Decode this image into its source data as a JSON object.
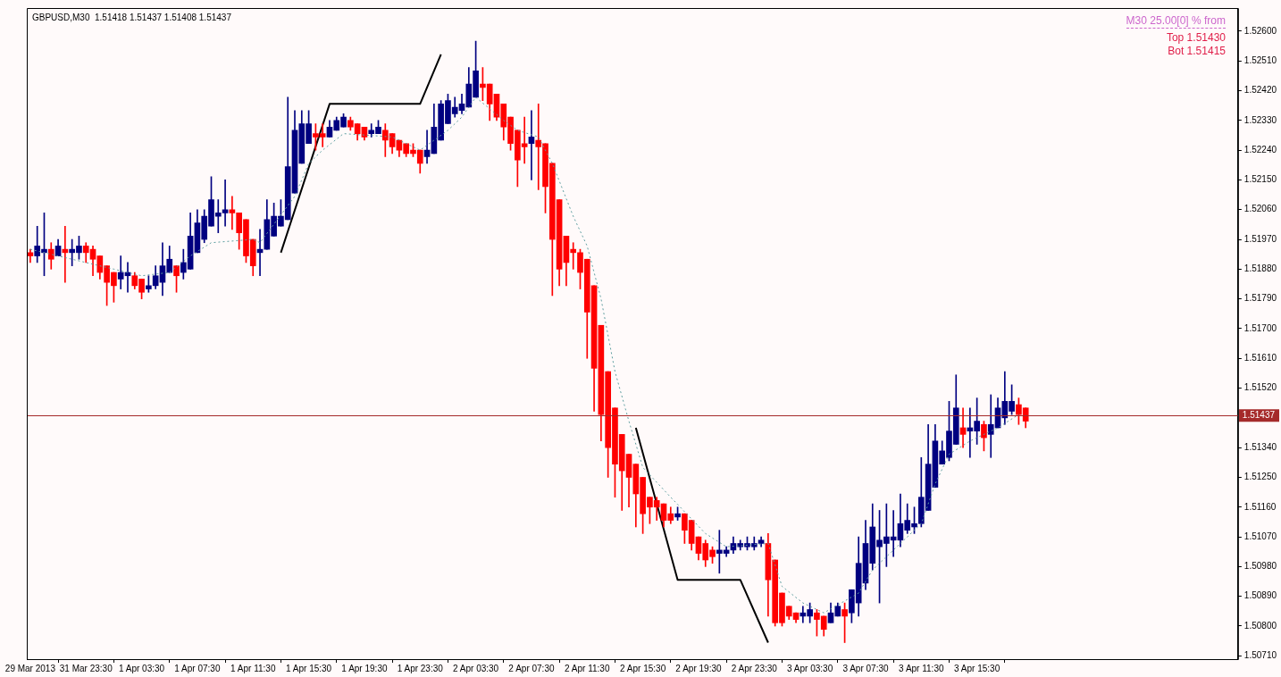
{
  "chart_data": {
    "type": "candlestick",
    "title": "GBPUSD,M30  1.51418 1.51437 1.51408 1.51437",
    "annotations": [
      "M30 25.00[0] % from",
      "Top 1.51430",
      "Bot 1.51415"
    ],
    "categories": [
      "29 Mar 2013",
      null,
      null,
      null,
      null,
      null,
      null,
      null,
      "31 Mar 23:30",
      null,
      null,
      null,
      null,
      null,
      null,
      null,
      "1 Apr 03:30",
      null,
      null,
      null,
      null,
      null,
      null,
      null,
      "1 Apr 07:30",
      null,
      null,
      null,
      null,
      null,
      null,
      null,
      "1 Apr 11:30",
      null,
      null,
      null,
      null,
      null,
      null,
      null,
      "1 Apr 15:30",
      null,
      null,
      null,
      null,
      null,
      null,
      null,
      "1 Apr 19:30",
      null,
      null,
      null,
      null,
      null,
      null,
      null,
      "1 Apr 23:30",
      null,
      null,
      null,
      null,
      null,
      null,
      null,
      "2 Apr 03:30",
      null,
      null,
      null,
      null,
      null,
      null,
      null,
      "2 Apr 07:30",
      null,
      null,
      null,
      null,
      null,
      null,
      null,
      "2 Apr 11:30",
      null,
      null,
      null,
      null,
      null,
      null,
      null,
      "2 Apr 15:30",
      null,
      null,
      null,
      null,
      null,
      null,
      null,
      "2 Apr 19:30",
      null,
      null,
      null,
      null,
      null,
      null,
      null,
      "2 Apr 23:30",
      null,
      null,
      null,
      null,
      null,
      null,
      null,
      "3 Apr 03:30",
      null,
      null,
      null,
      null,
      null,
      null,
      null,
      "3 Apr 07:30",
      null,
      null,
      null,
      null,
      null,
      null,
      null,
      "3 Apr 11:30",
      null,
      null,
      null,
      null,
      null,
      null,
      null,
      "3 Apr 15:30",
      null,
      null,
      null,
      null,
      null,
      null,
      null,
      null,
      null,
      null,
      null,
      null,
      null,
      null,
      null,
      null,
      null,
      null,
      null,
      null,
      null,
      null,
      null,
      null,
      null,
      null,
      null,
      null,
      null,
      null,
      null,
      null,
      null,
      null,
      null,
      null,
      null
    ],
    "ohlc": [
      [
        1.5193,
        1.5194,
        1.519,
        1.5192
      ],
      [
        1.5192,
        1.5201,
        1.519,
        1.5195
      ],
      [
        1.5193,
        1.5205,
        1.5186,
        1.5194
      ],
      [
        1.5194,
        1.5196,
        1.5188,
        1.5191
      ],
      [
        1.5192,
        1.5197,
        1.5192,
        1.5195
      ],
      [
        1.5194,
        1.5201,
        1.5184,
        1.5193
      ],
      [
        1.5193,
        1.5197,
        1.5189,
        1.5194
      ],
      [
        1.5193,
        1.5198,
        1.5191,
        1.5195
      ],
      [
        1.5195,
        1.5196,
        1.519,
        1.5193
      ],
      [
        1.5194,
        1.5195,
        1.5186,
        1.5191
      ],
      [
        1.5192,
        1.5192,
        1.5185,
        1.5187
      ],
      [
        1.5189,
        1.5189,
        1.5177,
        1.5184
      ],
      [
        1.5187,
        1.5187,
        1.5178,
        1.5183
      ],
      [
        1.5185,
        1.5192,
        1.5182,
        1.5187
      ],
      [
        1.5186,
        1.519,
        1.5181,
        1.5187
      ],
      [
        1.5186,
        1.5187,
        1.5182,
        1.5183
      ],
      [
        1.5185,
        1.5185,
        1.5179,
        1.5181
      ],
      [
        1.5182,
        1.5186,
        1.5181,
        1.5183
      ],
      [
        1.5183,
        1.5189,
        1.5182,
        1.5186
      ],
      [
        1.5184,
        1.5196,
        1.518,
        1.5189
      ],
      [
        1.5187,
        1.5195,
        1.5187,
        1.5191
      ],
      [
        1.5189,
        1.5189,
        1.5181,
        1.5186
      ],
      [
        1.5187,
        1.5194,
        1.5185,
        1.519
      ],
      [
        1.5188,
        1.5205,
        1.5188,
        1.5198
      ],
      [
        1.5193,
        1.5206,
        1.5193,
        1.5202
      ],
      [
        1.5197,
        1.5206,
        1.5196,
        1.5204
      ],
      [
        1.5201,
        1.5216,
        1.5201,
        1.5209
      ],
      [
        1.5204,
        1.5209,
        1.5199,
        1.5205
      ],
      [
        1.5205,
        1.5215,
        1.5201,
        1.5206
      ],
      [
        1.5206,
        1.521,
        1.52,
        1.5205
      ],
      [
        1.5205,
        1.5205,
        1.5194,
        1.5199
      ],
      [
        1.5203,
        1.5203,
        1.519,
        1.5192
      ],
      [
        1.5197,
        1.5197,
        1.5186,
        1.5189
      ],
      [
        1.5193,
        1.52,
        1.5186,
        1.5194
      ],
      [
        1.5194,
        1.5209,
        1.5194,
        1.5203
      ],
      [
        1.5198,
        1.5208,
        1.5198,
        1.5204
      ],
      [
        1.5201,
        1.5209,
        1.5201,
        1.5204
      ],
      [
        1.5203,
        1.524,
        1.5203,
        1.5219
      ],
      [
        1.5211,
        1.5236,
        1.5211,
        1.523
      ],
      [
        1.522,
        1.5236,
        1.522,
        1.5232
      ],
      [
        1.5226,
        1.5236,
        1.5226,
        1.5232
      ],
      [
        1.5229,
        1.5232,
        1.5224,
        1.5228
      ],
      [
        1.5229,
        1.5232,
        1.5225,
        1.5228
      ],
      [
        1.5228,
        1.5233,
        1.5228,
        1.5231
      ],
      [
        1.523,
        1.5234,
        1.523,
        1.5233
      ],
      [
        1.5231,
        1.5235,
        1.5231,
        1.5234
      ],
      [
        1.5233,
        1.5234,
        1.523,
        1.5231
      ],
      [
        1.5232,
        1.5232,
        1.5227,
        1.5229
      ],
      [
        1.5231,
        1.5231,
        1.5227,
        1.5228
      ],
      [
        1.5229,
        1.5232,
        1.5228,
        1.523
      ],
      [
        1.5229,
        1.5233,
        1.5229,
        1.5231
      ],
      [
        1.523,
        1.5232,
        1.5222,
        1.5227
      ],
      [
        1.5229,
        1.5229,
        1.5223,
        1.5225
      ],
      [
        1.5227,
        1.5227,
        1.5222,
        1.5224
      ],
      [
        1.5226,
        1.5226,
        1.5222,
        1.5223
      ],
      [
        1.5224,
        1.5226,
        1.5222,
        1.5223
      ],
      [
        1.5224,
        1.5224,
        1.5217,
        1.522
      ],
      [
        1.5222,
        1.523,
        1.522,
        1.5224
      ],
      [
        1.5223,
        1.5238,
        1.5223,
        1.5231
      ],
      [
        1.5227,
        1.5239,
        1.5227,
        1.5238
      ],
      [
        1.5232,
        1.5241,
        1.5232,
        1.5239
      ],
      [
        1.5235,
        1.524,
        1.5234,
        1.5237
      ],
      [
        1.5236,
        1.5241,
        1.5235,
        1.5238
      ],
      [
        1.5237,
        1.5249,
        1.5237,
        1.5244
      ],
      [
        1.524,
        1.5257,
        1.524,
        1.5248
      ],
      [
        1.5244,
        1.5249,
        1.5239,
        1.5243
      ],
      [
        1.5244,
        1.5244,
        1.5233,
        1.5238
      ],
      [
        1.5241,
        1.5241,
        1.5233,
        1.5234
      ],
      [
        1.5238,
        1.5238,
        1.5227,
        1.5231
      ],
      [
        1.5234,
        1.5234,
        1.5224,
        1.5226
      ],
      [
        1.523,
        1.523,
        1.5213,
        1.5221
      ],
      [
        1.5226,
        1.5234,
        1.522,
        1.5225
      ],
      [
        1.5226,
        1.5236,
        1.5215,
        1.5228
      ],
      [
        1.5227,
        1.5238,
        1.5212,
        1.5225
      ],
      [
        1.5226,
        1.5226,
        1.5205,
        1.5213
      ],
      [
        1.522,
        1.522,
        1.518,
        1.5197
      ],
      [
        1.5209,
        1.5209,
        1.5183,
        1.5188
      ],
      [
        1.5198,
        1.5198,
        1.5183,
        1.519
      ],
      [
        1.5194,
        1.5196,
        1.5188,
        1.5193
      ],
      [
        1.5193,
        1.5194,
        1.5182,
        1.5187
      ],
      [
        1.5191,
        1.5191,
        1.5161,
        1.5175
      ],
      [
        1.5183,
        1.5183,
        1.5145,
        1.5158
      ],
      [
        1.5171,
        1.5171,
        1.5136,
        1.5144
      ],
      [
        1.5157,
        1.5157,
        1.5125,
        1.5134
      ],
      [
        1.5146,
        1.5146,
        1.5119,
        1.5129
      ],
      [
        1.5138,
        1.5138,
        1.5115,
        1.5127
      ],
      [
        1.5132,
        1.5132,
        1.5116,
        1.5125
      ],
      [
        1.5129,
        1.5129,
        1.511,
        1.512
      ],
      [
        1.5125,
        1.5125,
        1.5108,
        1.5114
      ],
      [
        1.5119,
        1.5119,
        1.5111,
        1.5116
      ],
      [
        1.5118,
        1.5119,
        1.5112,
        1.5116
      ],
      [
        1.5117,
        1.5117,
        1.511,
        1.5112
      ],
      [
        1.5114,
        1.5116,
        1.5111,
        1.5112
      ],
      [
        1.5113,
        1.5116,
        1.5112,
        1.5114
      ],
      [
        1.5114,
        1.5114,
        1.5105,
        1.5109
      ],
      [
        1.5112,
        1.5112,
        1.5103,
        1.5105
      ],
      [
        1.5107,
        1.5107,
        1.51,
        1.5102
      ],
      [
        1.5105,
        1.5106,
        1.5098,
        1.51
      ],
      [
        1.5103,
        1.5104,
        1.5099,
        1.5101
      ],
      [
        1.5102,
        1.5109,
        1.5096,
        1.5103
      ],
      [
        1.5102,
        1.5104,
        1.5101,
        1.5103
      ],
      [
        1.5103,
        1.5107,
        1.5102,
        1.5105
      ],
      [
        1.5104,
        1.5106,
        1.5103,
        1.5105
      ],
      [
        1.5104,
        1.5107,
        1.5103,
        1.5105
      ],
      [
        1.5104,
        1.5107,
        1.5103,
        1.5105
      ],
      [
        1.5105,
        1.5107,
        1.5104,
        1.5106
      ],
      [
        1.5105,
        1.5108,
        1.5083,
        1.5094
      ],
      [
        1.51,
        1.51,
        1.508,
        1.5081
      ],
      [
        1.509,
        1.509,
        1.508,
        1.5081
      ],
      [
        1.5086,
        1.5086,
        1.5082,
        1.5083
      ],
      [
        1.5084,
        1.5084,
        1.5081,
        1.5082
      ],
      [
        1.5083,
        1.5086,
        1.5081,
        1.5084
      ],
      [
        1.5083,
        1.5087,
        1.5081,
        1.5085
      ],
      [
        1.5084,
        1.5085,
        1.5077,
        1.5082
      ],
      [
        1.5083,
        1.5083,
        1.5077,
        1.5079
      ],
      [
        1.5081,
        1.5087,
        1.5081,
        1.5084
      ],
      [
        1.5083,
        1.5087,
        1.5083,
        1.5086
      ],
      [
        1.5085,
        1.5087,
        1.5075,
        1.5083
      ],
      [
        1.5084,
        1.5091,
        1.5081,
        1.5091
      ],
      [
        1.5087,
        1.5107,
        1.5083,
        1.5099
      ],
      [
        1.5093,
        1.5112,
        1.5091,
        1.5105
      ],
      [
        1.5099,
        1.5117,
        1.5097,
        1.511
      ],
      [
        1.5104,
        1.5115,
        1.5087,
        1.5106
      ],
      [
        1.5105,
        1.5117,
        1.5098,
        1.5107
      ],
      [
        1.5106,
        1.5115,
        1.5101,
        1.5107
      ],
      [
        1.5106,
        1.512,
        1.5104,
        1.5111
      ],
      [
        1.5109,
        1.5117,
        1.5108,
        1.5112
      ],
      [
        1.511,
        1.5116,
        1.5108,
        1.5111
      ],
      [
        1.5111,
        1.5131,
        1.511,
        1.5119
      ],
      [
        1.5115,
        1.5141,
        1.5115,
        1.5129
      ],
      [
        1.5122,
        1.5141,
        1.5122,
        1.5136
      ],
      [
        1.5129,
        1.5136,
        1.5129,
        1.5133
      ],
      [
        1.5131,
        1.5148,
        1.513,
        1.5139
      ],
      [
        1.5135,
        1.5156,
        1.5135,
        1.5146
      ],
      [
        1.514,
        1.5146,
        1.5134,
        1.5138
      ],
      [
        1.5139,
        1.5146,
        1.5131,
        1.514
      ],
      [
        1.5139,
        1.5149,
        1.5135,
        1.5142
      ],
      [
        1.5141,
        1.5142,
        1.5133,
        1.5137
      ],
      [
        1.5138,
        1.515,
        1.5131,
        1.5141
      ],
      [
        1.514,
        1.5149,
        1.514,
        1.5146
      ],
      [
        1.5143,
        1.5157,
        1.5141,
        1.5148
      ],
      [
        1.5145,
        1.5153,
        1.5144,
        1.5148
      ],
      [
        1.5147,
        1.5149,
        1.5141,
        1.5144
      ],
      [
        1.5146,
        1.5146,
        1.514,
        1.5142
      ],
      null,
      null,
      null,
      null,
      null,
      null,
      null,
      null,
      null,
      null,
      null,
      null,
      null,
      null,
      null,
      null,
      null,
      null,
      null,
      null,
      null,
      null,
      null,
      null,
      null,
      null,
      null,
      null,
      null,
      null
    ],
    "colors": [
      "#ff0000",
      "#000080",
      "#000080",
      "#ff0000",
      "#000080",
      "#ff0000",
      "#000080",
      "#000080",
      "#ff0000",
      "#ff0000",
      "#ff0000",
      "#ff0000",
      "#ff0000",
      "#000080",
      "#000080",
      "#ff0000",
      "#ff0000",
      "#000080",
      "#000080",
      "#000080",
      "#000080",
      "#ff0000",
      "#000080",
      "#000080",
      "#000080",
      "#000080",
      "#000080",
      "#000080",
      "#000080",
      "#ff0000",
      "#ff0000",
      "#ff0000",
      "#ff0000",
      "#000080",
      "#000080",
      "#000080",
      "#000080",
      "#000080",
      "#000080",
      "#000080",
      "#000080",
      "#ff0000",
      "#ff0000",
      "#000080",
      "#000080",
      "#000080",
      "#ff0000",
      "#ff0000",
      "#ff0000",
      "#000080",
      "#000080",
      "#ff0000",
      "#ff0000",
      "#ff0000",
      "#ff0000",
      "#ff0000",
      "#ff0000",
      "#000080",
      "#000080",
      "#000080",
      "#000080",
      "#000080",
      "#000080",
      "#000080",
      "#000080",
      "#ff0000",
      "#ff0000",
      "#ff0000",
      "#ff0000",
      "#ff0000",
      "#ff0000",
      "#ff0000",
      "#000080",
      "#ff0000",
      "#ff0000",
      "#ff0000",
      "#ff0000",
      "#ff0000",
      "#ff0000",
      "#ff0000",
      "#ff0000",
      "#ff0000",
      "#ff0000",
      "#ff0000",
      "#ff0000",
      "#ff0000",
      "#ff0000",
      "#ff0000",
      "#ff0000",
      "#ff0000",
      "#ff0000",
      "#ff0000",
      "#ff0000",
      "#000080",
      "#ff0000",
      "#ff0000",
      "#ff0000",
      "#ff0000",
      "#ff0000",
      "#000080",
      "#000080",
      "#000080",
      "#000080",
      "#000080",
      "#000080",
      "#000080",
      "#ff0000",
      "#ff0000",
      "#ff0000",
      "#ff0000",
      "#ff0000",
      "#000080",
      "#000080",
      "#ff0000",
      "#ff0000",
      "#000080",
      "#000080",
      "#ff0000",
      "#000080",
      "#000080",
      "#000080",
      "#000080",
      "#000080",
      "#000080",
      "#000080",
      "#000080",
      "#000080",
      "#000080",
      "#000080",
      "#000080",
      "#000080",
      "#000080",
      "#000080",
      "#000080",
      "#ff0000",
      "#000080",
      "#000080",
      "#ff0000",
      "#000080",
      "#000080",
      "#000080",
      "#000080",
      "#ff0000",
      "#ff0000",
      null,
      null,
      null,
      null,
      null,
      null,
      null,
      null,
      null,
      null,
      null,
      null,
      null,
      null,
      null,
      null,
      null,
      null,
      null,
      null,
      null,
      null,
      null,
      null,
      null,
      null,
      null,
      null,
      null,
      null
    ],
    "series": [
      {
        "type": "line",
        "color": "#000000",
        "values": [
          null,
          null,
          null,
          null,
          null,
          null,
          null,
          null,
          null,
          null,
          null,
          null,
          null,
          null,
          null,
          null,
          null,
          null,
          null,
          null,
          null,
          null,
          null,
          null,
          null,
          null,
          null,
          null,
          null,
          null,
          null,
          null,
          null,
          null,
          null,
          null,
          1.5193,
          null,
          null,
          null,
          null,
          null,
          null,
          1.5238,
          null,
          null,
          null,
          null,
          null,
          null,
          null,
          null,
          null,
          null,
          null,
          null,
          1.5238,
          null,
          null,
          1.5253,
          null,
          null,
          null,
          null,
          null,
          null,
          null,
          null,
          null,
          null,
          null,
          null,
          null,
          null,
          null,
          null,
          null,
          null,
          null,
          null,
          null,
          null,
          null,
          null,
          null,
          null,
          null,
          null,
          null,
          null,
          null,
          null,
          null,
          null,
          null,
          null,
          null,
          null,
          null,
          null,
          null,
          null,
          null,
          null,
          null,
          null,
          null,
          null,
          null,
          null,
          null,
          null,
          null,
          null,
          null,
          null,
          null,
          null,
          null,
          null,
          null,
          null,
          null,
          null,
          null,
          null,
          null,
          null,
          null,
          null,
          null,
          null,
          null,
          null,
          null,
          null,
          null,
          null,
          null,
          null,
          null,
          null,
          null,
          null,
          null,
          null,
          null,
          null,
          null,
          null,
          null,
          null,
          null,
          null,
          null,
          null,
          null,
          null,
          null,
          null,
          null,
          null,
          null,
          null,
          null,
          null,
          null,
          null,
          null,
          null,
          null,
          null,
          null,
          null
        ]
      },
      {
        "type": "line",
        "color": "#000000",
        "values": [
          null,
          null,
          null,
          null,
          null,
          null,
          null,
          null,
          null,
          null,
          null,
          null,
          null,
          null,
          null,
          null,
          null,
          null,
          null,
          null,
          null,
          null,
          null,
          null,
          null,
          null,
          null,
          null,
          null,
          null,
          null,
          null,
          null,
          null,
          null,
          null,
          null,
          null,
          null,
          null,
          null,
          null,
          null,
          null,
          null,
          null,
          null,
          null,
          null,
          null,
          null,
          null,
          null,
          null,
          null,
          null,
          null,
          null,
          null,
          null,
          null,
          null,
          null,
          null,
          null,
          null,
          null,
          null,
          null,
          null,
          null,
          null,
          null,
          null,
          null,
          null,
          null,
          null,
          null,
          null,
          null,
          null,
          null,
          null,
          null,
          null,
          null,
          1.514,
          null,
          null,
          null,
          null,
          null,
          1.5094,
          null,
          null,
          null,
          null,
          null,
          null,
          null,
          null,
          1.5094,
          null,
          null,
          null,
          1.5075,
          null,
          null,
          null,
          null,
          null,
          null,
          null,
          null,
          null,
          null,
          null,
          null,
          null,
          null,
          null,
          null,
          null,
          null,
          null,
          null,
          null,
          null,
          null,
          null,
          null,
          null,
          null,
          null,
          null,
          null,
          null,
          null,
          null,
          null,
          null,
          null,
          null,
          null,
          null,
          null,
          null,
          null,
          null,
          null,
          null,
          null,
          null,
          null,
          null,
          null,
          null,
          null,
          null,
          null,
          null,
          null,
          null,
          null,
          null,
          null,
          null,
          null,
          null,
          null,
          null,
          null,
          null
        ]
      },
      {
        "type": "line",
        "color": "#5f9ea0",
        "line_style": "dotted",
        "values": [
          1.5194,
          null,
          null,
          null,
          null,
          null,
          null,
          null,
          null,
          null,
          null,
          null,
          1.5188,
          null,
          null,
          null,
          1.5186,
          null,
          null,
          null,
          1.5187,
          null,
          null,
          1.5192,
          null,
          null,
          1.5196,
          null,
          null,
          null,
          null,
          null,
          1.5197,
          1.5196,
          null,
          null,
          null,
          null,
          1.521,
          null,
          1.522,
          null,
          1.5224,
          null,
          null,
          1.5229,
          null,
          null,
          null,
          null,
          null,
          null,
          1.5228,
          null,
          null,
          null,
          1.5224,
          null,
          null,
          null,
          1.523,
          null,
          1.5234,
          null,
          1.524,
          null,
          null,
          null,
          1.5233,
          null,
          1.523,
          null,
          null,
          1.5228,
          null,
          1.522,
          null,
          null,
          1.5204,
          null,
          1.5195,
          null,
          1.5179,
          null,
          1.5157,
          null,
          1.5142,
          null,
          1.5128,
          null,
          null,
          null,
          1.5119,
          null,
          null,
          null,
          null,
          1.5108,
          null,
          null,
          1.5104,
          null,
          null,
          null,
          null,
          null,
          1.5105,
          null,
          1.5092,
          null,
          null,
          1.5087,
          null,
          null,
          1.5084,
          null,
          null,
          null,
          null,
          1.509,
          null,
          1.5097,
          null,
          null,
          1.5103,
          null,
          null,
          null,
          1.5111,
          null,
          1.5123,
          null,
          1.5132,
          null,
          null,
          1.5136,
          null,
          null,
          null,
          1.514,
          null,
          null,
          1.5144,
          null,
          null,
          null,
          null,
          null,
          null,
          null,
          null,
          null,
          null,
          null,
          null,
          null,
          null,
          null,
          null,
          null,
          null,
          null,
          null,
          null,
          null,
          null,
          null,
          null,
          null,
          null,
          null,
          null,
          null,
          null
        ]
      }
    ],
    "ylim": [
      1.507,
      1.5267
    ],
    "yticks": [
      {
        "value": 1.526,
        "label": "1.52600"
      },
      {
        "value": 1.5251,
        "label": "1.52510"
      },
      {
        "value": 1.5242,
        "label": "1.52420"
      },
      {
        "value": 1.5233,
        "label": "1.52330"
      },
      {
        "value": 1.5224,
        "label": "1.52240"
      },
      {
        "value": 1.5215,
        "label": "1.52150"
      },
      {
        "value": 1.5206,
        "label": "1.52060"
      },
      {
        "value": 1.5197,
        "label": "1.51970"
      },
      {
        "value": 1.5188,
        "label": "1.51880"
      },
      {
        "value": 1.5179,
        "label": "1.51790"
      },
      {
        "value": 1.517,
        "label": "1.51700"
      },
      {
        "value": 1.5161,
        "label": "1.51610"
      },
      {
        "value": 1.5152,
        "label": "1.51520"
      },
      {
        "value": 1.5134,
        "label": "1.51340"
      },
      {
        "value": 1.5125,
        "label": "1.51250"
      },
      {
        "value": 1.5116,
        "label": "1.51160"
      },
      {
        "value": 1.5107,
        "label": "1.51070"
      },
      {
        "value": 1.5098,
        "label": "1.50980"
      },
      {
        "value": 1.5089,
        "label": "1.50890"
      },
      {
        "value": 1.508,
        "label": "1.50800"
      },
      {
        "value": 1.5071,
        "label": "1.50710"
      }
    ],
    "ref_lines": [
      {
        "axis": "y",
        "value": 1.51437,
        "label": "1.51437",
        "color": "#a52a2a"
      }
    ]
  }
}
